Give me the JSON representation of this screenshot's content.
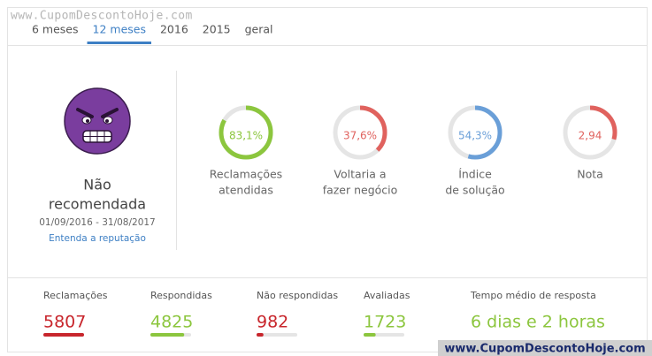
{
  "watermark_top": "www.CupomDescontoHoje.com",
  "tabs": {
    "items": [
      "6 meses",
      "12 meses",
      "2016",
      "2015",
      "geral"
    ],
    "active": 1
  },
  "reputation": {
    "status_line1": "Não",
    "status_line2": "recomendada",
    "period": "01/09/2016 - 31/08/2017",
    "link": "Entenda a reputação"
  },
  "gauges": [
    {
      "value": 83.1,
      "value_label": "83,1%",
      "range": [
        0,
        100
      ],
      "color": "#8cc63e",
      "label_lines": [
        "Reclamações",
        "atendidas"
      ]
    },
    {
      "value": 37.6,
      "value_label": "37,6%",
      "range": [
        0,
        100
      ],
      "color": "#e0625e",
      "label_lines": [
        "Voltaria a",
        "fazer negócio"
      ]
    },
    {
      "value": 54.3,
      "value_label": "54,3%",
      "range": [
        0,
        100
      ],
      "color": "#6a9fd8",
      "label_lines": [
        "Índice",
        "de solução"
      ]
    },
    {
      "value": 2.94,
      "value_label": "2,94",
      "range": [
        0,
        10
      ],
      "color": "#e0625e",
      "label_lines": [
        "Nota"
      ]
    }
  ],
  "stats": [
    {
      "label": "Reclamações",
      "value": 5807,
      "color": "#c8262c"
    },
    {
      "label": "Respondidas",
      "value": 4825,
      "color": "#8cc63e"
    },
    {
      "label": "Não respondidas",
      "value": 982,
      "color": "#c8262c"
    },
    {
      "label": "Avaliadas",
      "value": 1723,
      "color": "#8cc63e"
    }
  ],
  "response_time": {
    "label": "Tempo médio de resposta",
    "value": "6 dias e 2 horas",
    "color": "#8cc63e"
  },
  "watermark_bottom": "www.CupomDescontoHoje.com"
}
